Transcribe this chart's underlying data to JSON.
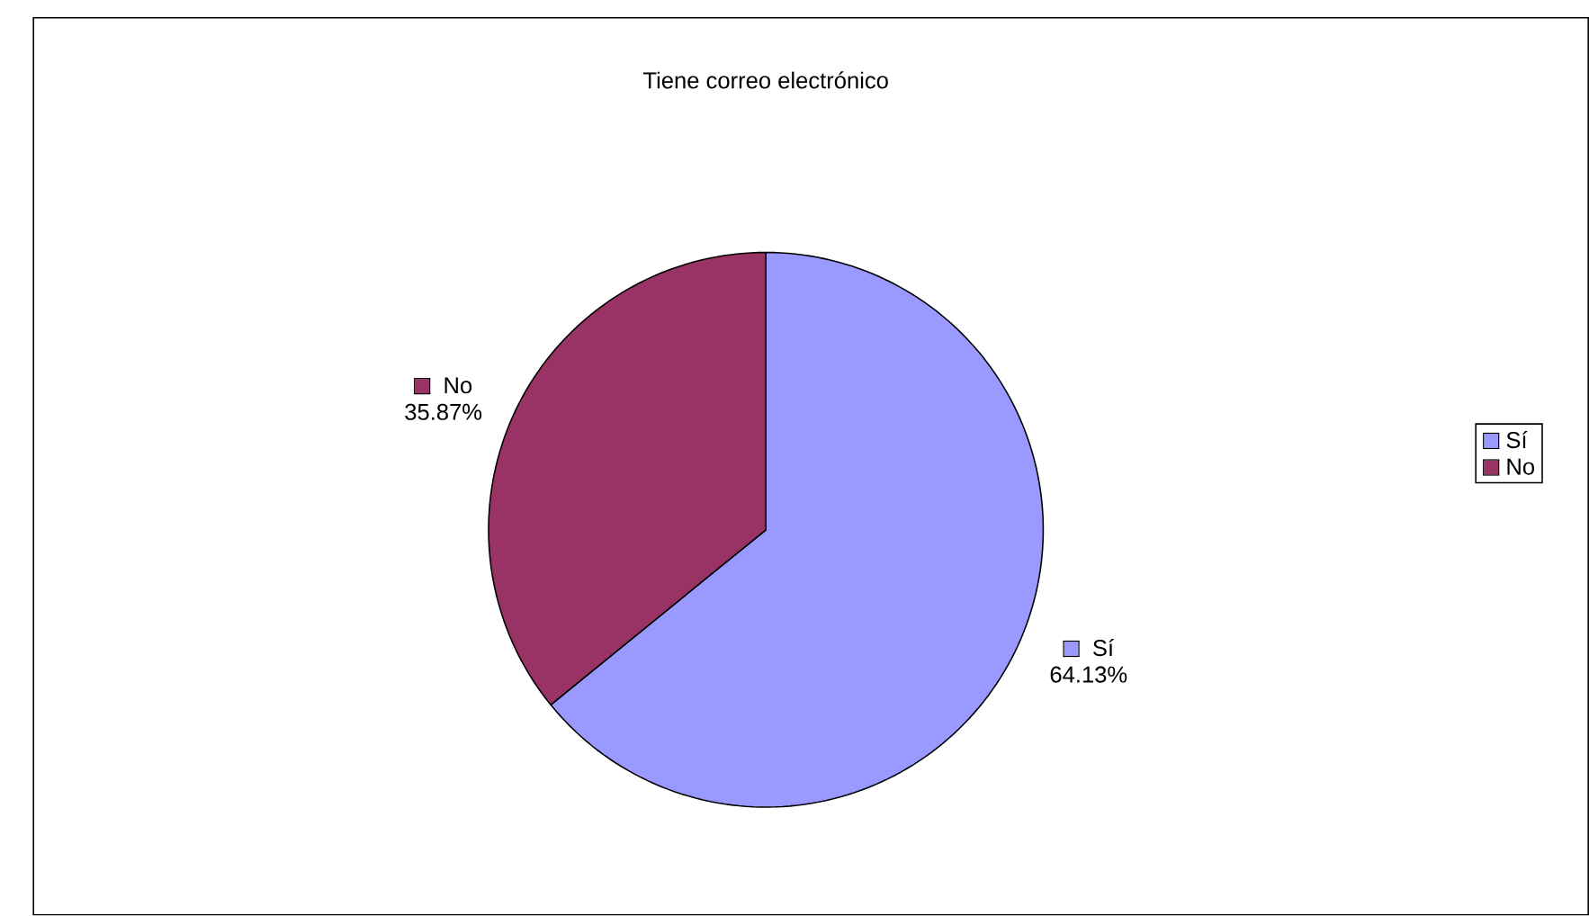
{
  "chart_data": {
    "type": "pie",
    "title": "Tiene correo electrónico",
    "categories": [
      "Sí",
      "No"
    ],
    "values": [
      64.13,
      35.87
    ],
    "colors": [
      "#9999ff",
      "#993366"
    ],
    "value_labels": [
      "64.13%",
      "35.87%"
    ],
    "legend": "right"
  }
}
